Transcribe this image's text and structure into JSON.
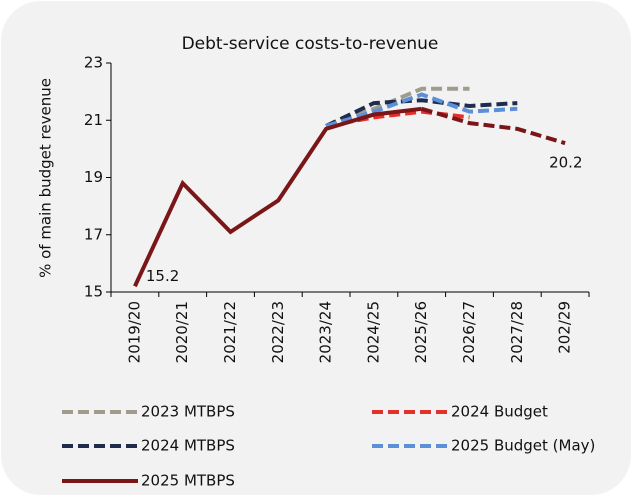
{
  "chart_data": {
    "type": "line",
    "title": "Debt-service costs-to-revenue",
    "y_label": "% of main budget revenue",
    "categories": [
      "2019/20",
      "2020/21",
      "2021/22",
      "2022/23",
      "2023/24",
      "2024/25",
      "2025/26",
      "2026/27",
      "2027/28",
      "202/29"
    ],
    "ylim": [
      15,
      23
    ],
    "yticks": [
      15,
      17,
      19,
      21,
      23
    ],
    "series": [
      {
        "name": "2023 MTBPS",
        "color": "#a09b8c",
        "dashed": true,
        "values": [
          null,
          null,
          null,
          null,
          20.8,
          21.4,
          22.1,
          22.1,
          null,
          null
        ]
      },
      {
        "name": "2024 Budget",
        "color": "#e2302b",
        "dashed": true,
        "values": [
          null,
          null,
          null,
          null,
          20.8,
          21.1,
          21.3,
          21.1,
          null,
          null
        ]
      },
      {
        "name": "2024 MTBPS",
        "color": "#1e2d4d",
        "dashed": true,
        "values": [
          null,
          null,
          null,
          null,
          20.8,
          21.6,
          21.7,
          21.5,
          21.6,
          null
        ]
      },
      {
        "name": "2025 Budget (May)",
        "color": "#5b8fd8",
        "dashed": true,
        "values": [
          null,
          null,
          null,
          null,
          20.8,
          21.3,
          21.9,
          21.3,
          21.4,
          null
        ]
      },
      {
        "name": "2025 MTBPS",
        "color": "#7a1518",
        "dashed": false,
        "dash_from": 6,
        "values": [
          15.2,
          18.8,
          17.1,
          18.2,
          20.7,
          21.2,
          21.4,
          20.9,
          20.7,
          20.2
        ]
      }
    ]
  }
}
